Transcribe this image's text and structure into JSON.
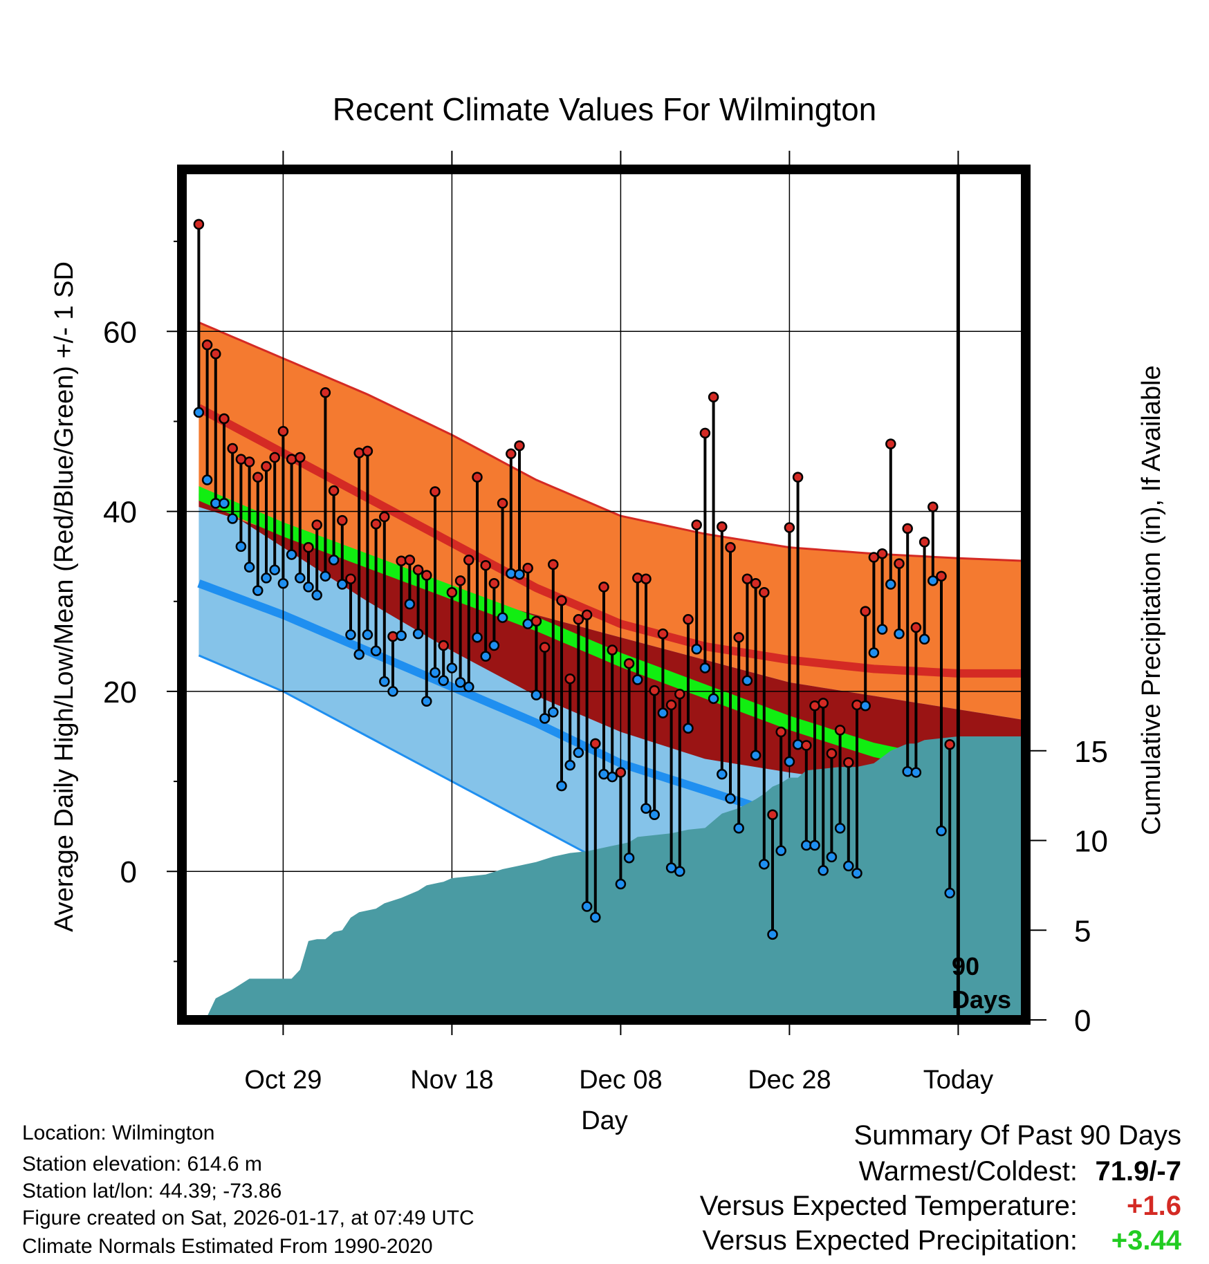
{
  "chart_data": {
    "type": "climate-range",
    "title": "Recent Climate Values For Wilmington",
    "xlabel": "Day",
    "ylabel": "Average Daily High/Low/Mean (Red/Blue/Green) +/- 1 SD",
    "y2label": "Cumulative Precipitation (in), If Available",
    "ylim": [
      -16.5,
      78
    ],
    "y2lim": [
      0,
      47.4
    ],
    "xlim": [
      -2,
      98
    ],
    "y_ticks": [
      0,
      20,
      40,
      60
    ],
    "y_minor_ticks": [
      -10,
      10,
      30,
      50,
      70
    ],
    "y2_ticks": [
      0,
      5,
      10,
      15
    ],
    "x_ticks": [
      {
        "day": 10,
        "label": "Oct 29"
      },
      {
        "day": 30,
        "label": "Nov 18"
      },
      {
        "day": 50,
        "label": "Dec 08"
      },
      {
        "day": 70,
        "label": "Dec 28"
      },
      {
        "day": 90,
        "label": "Today"
      }
    ],
    "today_marker": {
      "day": 90,
      "label_1": "90",
      "label_2": "Days"
    },
    "normals": {
      "days": [
        0,
        10,
        20,
        30,
        40,
        50,
        60,
        70,
        80,
        90,
        98
      ],
      "high_mean": [
        51.5,
        46.5,
        41.5,
        36.5,
        31.5,
        27.5,
        25.0,
        23.5,
        22.5,
        22.0,
        22.0
      ],
      "high_plus_sd": [
        61.0,
        57.0,
        53.0,
        48.5,
        43.5,
        39.5,
        37.5,
        36.0,
        35.3,
        34.8,
        34.5
      ],
      "low_mean": [
        32.0,
        28.5,
        24.5,
        20.5,
        16.5,
        12.0,
        9.0,
        6.0,
        3.5,
        1.5,
        0.0
      ],
      "low_minus_sd": [
        24.0,
        20.0,
        15.0,
        10.0,
        5.0,
        0.0,
        -4.0,
        -7.0,
        -10.0,
        -12.0,
        -13.0
      ],
      "mean_mean": [
        42.0,
        38.0,
        34.5,
        31.0,
        27.5,
        23.5,
        20.0,
        16.5,
        13.5,
        11.5,
        10.5
      ],
      "low_plus_sd": [
        40.5,
        37.5,
        34.5,
        31.0,
        28.5,
        26.0,
        23.5,
        21.0,
        19.5,
        18.0,
        16.8
      ],
      "mean_band_halfwidth": 0.8
    },
    "daily": {
      "high": [
        71.9,
        58.5,
        57.5,
        50.3,
        47.0,
        45.8,
        45.5,
        43.8,
        45.0,
        46.0,
        48.9,
        45.8,
        46.0,
        36.0,
        38.5,
        53.2,
        42.3,
        39.0,
        32.5,
        46.5,
        46.7,
        38.6,
        39.4,
        26.1,
        34.5,
        34.6,
        33.5,
        32.9,
        42.2,
        25.1,
        31.0,
        32.3,
        34.6,
        43.8,
        34.0,
        32.0,
        40.9,
        46.4,
        47.3,
        33.7,
        27.8,
        24.9,
        34.1,
        30.1,
        21.4,
        28.0,
        28.5,
        14.2,
        31.6,
        24.6,
        11.0,
        23.1,
        32.6,
        32.5,
        20.1,
        26.4,
        18.5,
        19.7,
        28.0,
        38.5,
        48.7,
        52.7,
        38.3,
        36.0,
        26.0,
        32.5,
        32.0,
        31.0,
        6.3,
        15.5,
        38.2,
        43.8,
        14.0,
        18.4,
        18.7,
        13.1,
        15.7,
        12.1,
        18.5,
        28.9,
        34.9,
        35.3,
        47.5,
        34.2,
        38.1,
        27.1,
        36.6,
        40.5,
        32.8,
        14.1
      ],
      "low": [
        51.0,
        43.5,
        40.9,
        40.9,
        39.2,
        36.1,
        33.8,
        31.2,
        32.6,
        33.5,
        32.0,
        35.2,
        32.6,
        31.6,
        30.7,
        32.8,
        34.6,
        31.9,
        26.3,
        24.1,
        26.3,
        24.5,
        21.1,
        20.0,
        26.2,
        29.7,
        26.4,
        18.9,
        22.1,
        21.2,
        22.6,
        21.0,
        20.5,
        26.0,
        23.9,
        25.1,
        28.2,
        33.1,
        33.0,
        27.5,
        19.6,
        17.0,
        17.7,
        9.5,
        11.8,
        13.2,
        -3.9,
        -5.1,
        10.8,
        10.5,
        -1.4,
        1.5,
        21.3,
        7.0,
        6.3,
        17.6,
        0.4,
        0.0,
        15.9,
        24.7,
        22.6,
        19.2,
        10.8,
        8.1,
        4.8,
        21.2,
        12.9,
        0.8,
        -7.0,
        2.3,
        12.2,
        14.1,
        2.9,
        2.9,
        0.1,
        1.6,
        4.8,
        0.6,
        -0.2,
        18.4,
        24.3,
        26.9,
        31.9,
        26.4,
        11.1,
        11.0,
        25.8,
        32.3,
        4.5,
        -2.4
      ]
    },
    "precip": {
      "days": [
        1,
        2,
        4,
        6,
        8,
        9,
        10,
        11,
        12,
        13,
        14,
        15,
        16,
        17,
        18,
        19,
        21,
        22,
        24,
        26,
        27,
        28,
        29,
        30,
        32,
        34,
        36,
        38,
        40,
        42,
        44,
        46,
        47,
        48,
        49,
        50,
        51,
        52,
        54,
        56,
        58,
        60,
        61,
        62,
        64,
        66,
        67,
        68,
        69,
        70,
        71,
        72,
        74,
        76,
        78,
        80,
        82,
        84,
        85,
        86,
        88,
        90,
        98
      ],
      "values": [
        0.2,
        1.2,
        1.7,
        2.3,
        2.3,
        2.3,
        2.3,
        2.3,
        2.8,
        4.4,
        4.5,
        4.5,
        4.9,
        5.0,
        5.7,
        6.0,
        6.2,
        6.5,
        6.8,
        7.2,
        7.5,
        7.6,
        7.7,
        7.9,
        8.0,
        8.1,
        8.4,
        8.6,
        8.8,
        9.1,
        9.3,
        9.4,
        9.5,
        9.6,
        9.7,
        9.8,
        9.9,
        10.2,
        10.3,
        10.4,
        10.6,
        10.7,
        11.1,
        11.5,
        11.8,
        12.3,
        12.6,
        13.0,
        13.2,
        13.5,
        13.5,
        13.9,
        14.0,
        14.1,
        14.1,
        14.3,
        15.0,
        15.4,
        15.4,
        15.6,
        15.7,
        15.8,
        15.8
      ]
    },
    "colors": {
      "high_band": "#f47a30",
      "high_mean_line": "#d42a24",
      "overlap_band": "#9a1414",
      "low_band": "#85c3e9",
      "low_mean_line": "#1f8ff0",
      "mean_band": "#11ee11",
      "precip_fill": "#4a9ba3",
      "high_dot": "#d42a24",
      "low_dot": "#1f8ff0"
    }
  },
  "footer": {
    "location": "Location: Wilmington",
    "elevation": "Station elevation: 614.6 m",
    "latlon": "Station lat/lon: 44.39; -73.86",
    "created": "Figure created on Sat, 2026-01-17, at 07:49 UTC",
    "normals": "Climate Normals Estimated From 1990-2020"
  },
  "summary": {
    "title": "Summary Of Past 90 Days",
    "warmest_label": "Warmest/Coldest:",
    "warmest_value": "71.9/-7",
    "temp_label": "Versus Expected Temperature:",
    "temp_value": "+1.6",
    "temp_color": "#d42a24",
    "precip_label": "Versus Expected Precipitation:",
    "precip_value": "+3.44",
    "precip_color": "#22cc22"
  }
}
